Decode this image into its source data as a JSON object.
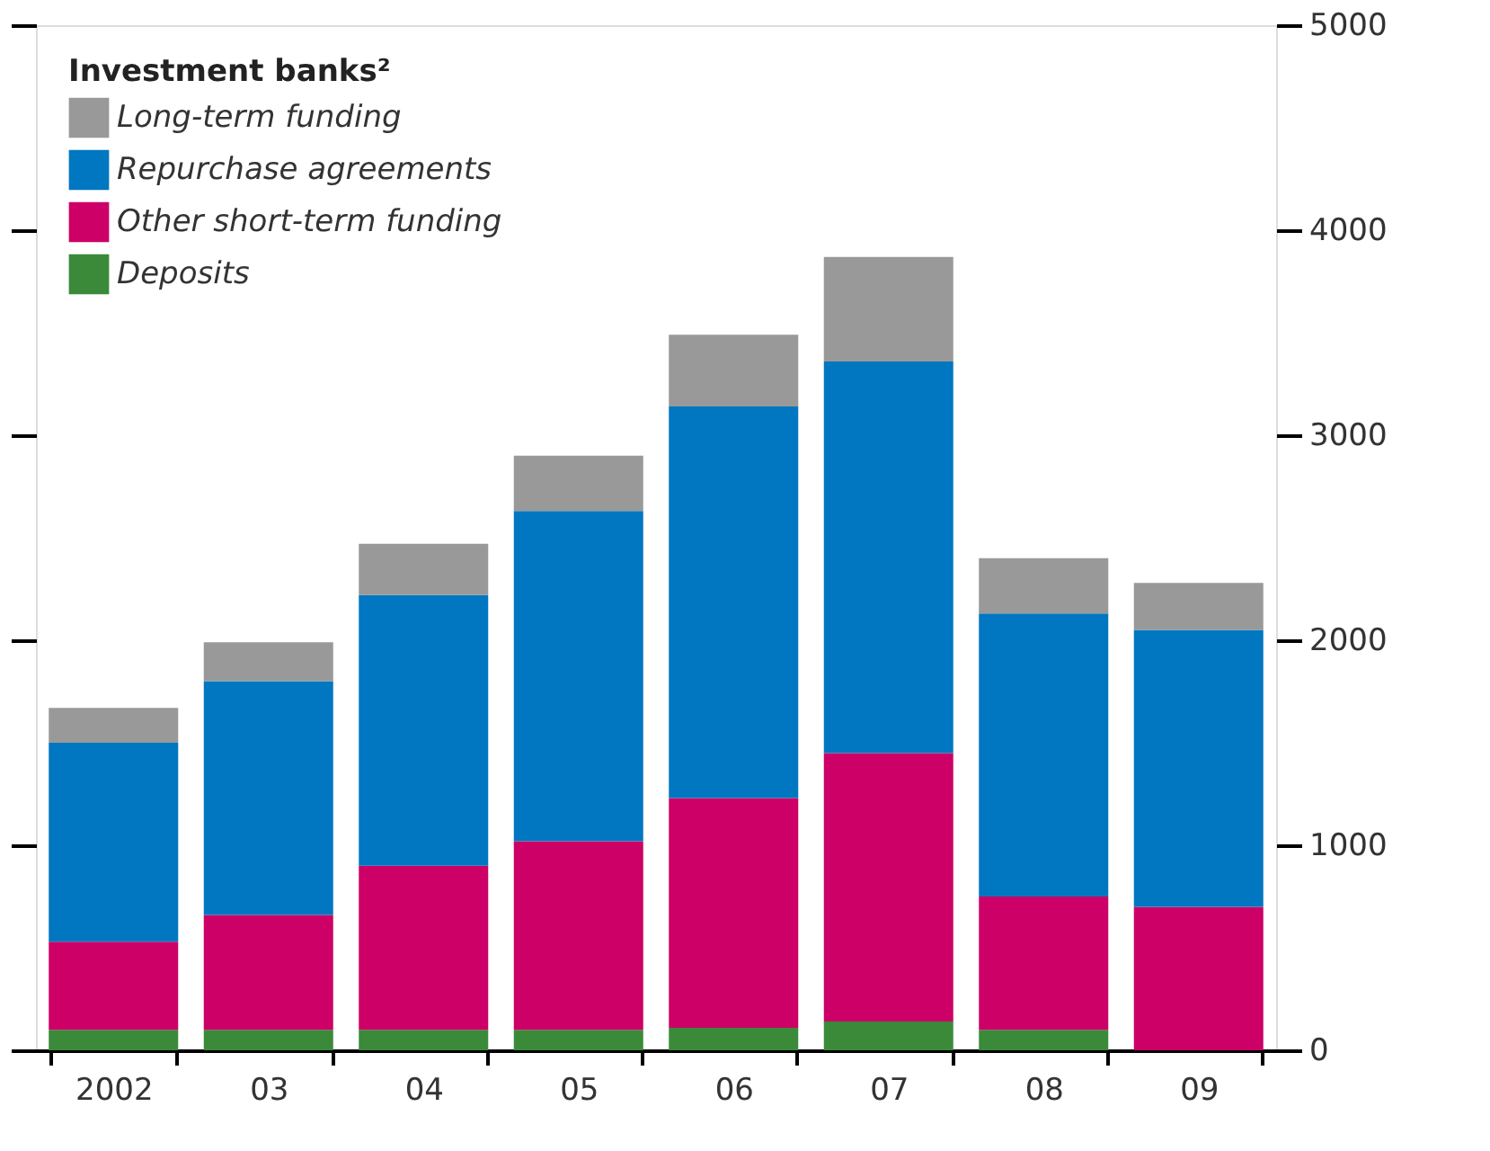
{
  "chart_data": {
    "type": "bar",
    "stacked": true,
    "legend_title": "Investment banks²",
    "legend": "top left",
    "categories": [
      "2002",
      "03",
      "04",
      "05",
      "06",
      "07",
      "08",
      "09"
    ],
    "series": [
      {
        "name": "Deposits",
        "color": "#3a8a3a",
        "values": [
          100,
          100,
          100,
          100,
          110,
          140,
          100,
          0
        ]
      },
      {
        "name": "Other short-term funding",
        "color": "#cc0066",
        "values": [
          430,
          560,
          800,
          920,
          1120,
          1310,
          650,
          700
        ]
      },
      {
        "name": "Repurchase agreements",
        "color": "#0077c0",
        "values": [
          970,
          1140,
          1320,
          1610,
          1910,
          1910,
          1380,
          1350
        ]
      },
      {
        "name": "Long-term funding",
        "color": "#999999",
        "values": [
          170,
          190,
          250,
          270,
          350,
          510,
          270,
          230
        ]
      }
    ],
    "ylim": [
      0,
      5000
    ],
    "yticks": [
      0,
      1000,
      2000,
      3000,
      4000,
      5000
    ],
    "grid": false
  }
}
